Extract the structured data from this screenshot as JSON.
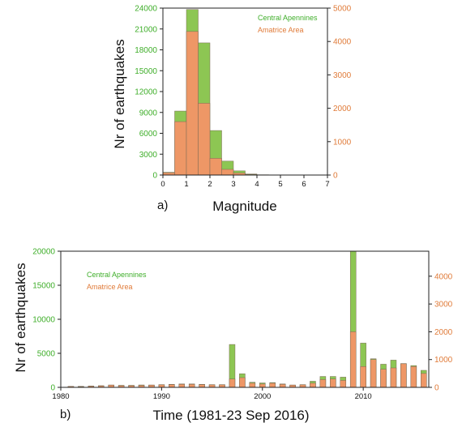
{
  "colors": {
    "central": "#8dc653",
    "amatrice": "#ee9766",
    "central_axis": "#3fae2a",
    "amatrice_axis": "#e07b39",
    "stroke": "#7a6a55"
  },
  "chart_data": [
    {
      "type": "bar",
      "panel_label": "a)",
      "xlabel": "Magnitude",
      "ylabel": "Nr of earthquakes",
      "xlim": [
        0,
        7
      ],
      "ylim_left": [
        0,
        24000
      ],
      "ylim_right": [
        0,
        5000
      ],
      "x_ticks": [
        "0",
        "1",
        "2",
        "3",
        "4",
        "5",
        "6",
        "7"
      ],
      "y_ticks_left": [
        "0",
        "3000",
        "6000",
        "9000",
        "12000",
        "15000",
        "18000",
        "21000",
        "24000"
      ],
      "y_ticks_right": [
        "0",
        "1000",
        "2000",
        "3000",
        "4000",
        "5000"
      ],
      "bin_starts": [
        0,
        0.5,
        1.0,
        1.5,
        2.0,
        2.5,
        3.0,
        3.5,
        4.0
      ],
      "bin_width": 0.5,
      "series": [
        {
          "name": "Central Apennines",
          "axis": "left",
          "values": [
            400,
            9200,
            23800,
            19000,
            6400,
            2000,
            600,
            150,
            40
          ]
        },
        {
          "name": "Amatrice Area",
          "axis": "right",
          "values": [
            70,
            1600,
            4300,
            2150,
            500,
            170,
            60,
            15,
            5
          ]
        }
      ]
    },
    {
      "type": "bar",
      "panel_label": "b)",
      "xlabel": "Time (1981-23 Sep 2016)",
      "ylabel": "Nr of earthquakes",
      "xlim": [
        1980,
        2016.5
      ],
      "ylim_left": [
        0,
        20000
      ],
      "ylim_right": [
        0,
        4900
      ],
      "x_ticks": [
        "1980",
        "1990",
        "2000",
        "2010"
      ],
      "y_ticks_left": [
        "0",
        "5000",
        "10000",
        "15000",
        "20000"
      ],
      "y_ticks_right": [
        "0",
        "1000",
        "2000",
        "3000",
        "4000"
      ],
      "years": [
        1981,
        1982,
        1983,
        1984,
        1985,
        1986,
        1987,
        1988,
        1989,
        1990,
        1991,
        1992,
        1993,
        1994,
        1995,
        1996,
        1997,
        1998,
        1999,
        2000,
        2001,
        2002,
        2003,
        2004,
        2005,
        2006,
        2007,
        2008,
        2009,
        2010,
        2011,
        2012,
        2013,
        2014,
        2015,
        2016
      ],
      "series": [
        {
          "name": "Central Apennines",
          "axis": "left",
          "values": [
            150,
            150,
            200,
            250,
            350,
            300,
            300,
            350,
            350,
            400,
            450,
            500,
            500,
            450,
            400,
            400,
            6300,
            2000,
            750,
            650,
            700,
            500,
            350,
            400,
            900,
            1600,
            1600,
            1500,
            20000,
            6500,
            4200,
            3400,
            4000,
            3500,
            3200,
            2500
          ]
        },
        {
          "name": "Amatrice Area",
          "axis": "right",
          "values": [
            30,
            25,
            40,
            50,
            80,
            60,
            60,
            70,
            80,
            90,
            100,
            110,
            110,
            100,
            90,
            90,
            300,
            350,
            150,
            120,
            150,
            110,
            80,
            90,
            150,
            280,
            300,
            250,
            2000,
            750,
            1000,
            650,
            700,
            850,
            750,
            500
          ]
        }
      ]
    }
  ]
}
